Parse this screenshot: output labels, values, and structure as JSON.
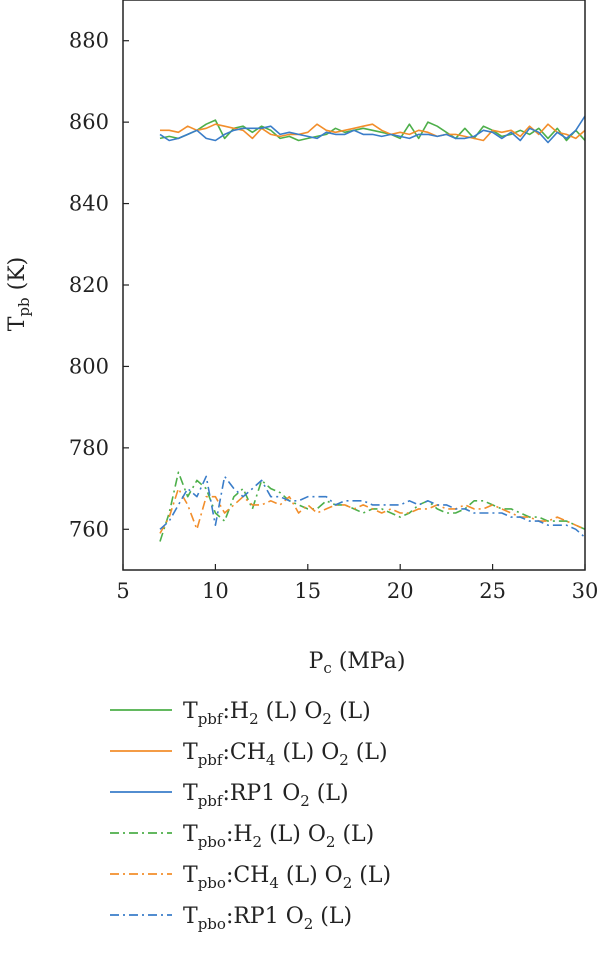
{
  "chart_data": {
    "type": "line",
    "xlabel_main": "P",
    "xlabel_sub": "c",
    "xlabel_unit": " (MPa)",
    "ylabel_main": "T",
    "ylabel_sub": "pb",
    "ylabel_unit": " (K)",
    "xlim": [
      5,
      30
    ],
    "ylim": [
      750,
      890
    ],
    "xticks": [
      "5",
      "10",
      "15",
      "20",
      "25",
      "30"
    ],
    "yticks": [
      "760",
      "780",
      "800",
      "820",
      "840",
      "860",
      "880"
    ],
    "legend_position": "below",
    "colors": {
      "green": "#4daf4a",
      "orange": "#f28e2b",
      "blue": "#3a7dc9"
    },
    "series": [
      {
        "legend": [
          "T",
          "pbf",
          ":H",
          "2",
          " (L) O",
          "2",
          " (L)"
        ],
        "color": "green",
        "style": "solid",
        "x": [
          7,
          7.5,
          8,
          8.5,
          9,
          9.5,
          10,
          10.5,
          11,
          11.5,
          12,
          12.5,
          13,
          13.5,
          14,
          14.5,
          15,
          15.5,
          16,
          16.5,
          17,
          17.5,
          18,
          18.5,
          19,
          19.5,
          20,
          20.5,
          21,
          21.5,
          22,
          22.5,
          23,
          23.5,
          24,
          24.5,
          25,
          25.5,
          26,
          26.5,
          27,
          27.5,
          28,
          28.5,
          29,
          29.5,
          30
        ],
        "y": [
          856,
          856.5,
          856,
          857,
          858,
          859.5,
          860.5,
          856,
          858.5,
          859,
          857.5,
          859,
          858,
          856,
          856.5,
          855.5,
          856,
          856.5,
          857,
          858.5,
          857.5,
          858,
          858.5,
          858,
          857.5,
          857,
          856,
          859.5,
          856,
          860,
          859,
          857.5,
          856,
          858.5,
          856,
          859,
          858,
          856.5,
          857,
          858,
          857,
          858.5,
          856,
          858.5,
          855.5,
          858,
          855.5
        ]
      },
      {
        "legend": [
          "T",
          "pbf",
          ":CH",
          "4",
          " (L) O",
          "2",
          " (L)"
        ],
        "color": "orange",
        "style": "solid",
        "x": [
          7,
          7.5,
          8,
          8.5,
          9,
          9.5,
          10,
          10.5,
          11,
          11.5,
          12,
          12.5,
          13,
          13.5,
          14,
          14.5,
          15,
          15.5,
          16,
          16.5,
          17,
          17.5,
          18,
          18.5,
          19,
          19.5,
          20,
          20.5,
          21,
          21.5,
          22,
          22.5,
          23,
          23.5,
          24,
          24.5,
          25,
          25.5,
          26,
          26.5,
          27,
          27.5,
          28,
          28.5,
          29,
          29.5,
          30
        ],
        "y": [
          858,
          858,
          857.5,
          859,
          858,
          858.5,
          859.5,
          859,
          858.5,
          858,
          856,
          858.5,
          857,
          856.5,
          857,
          857,
          857.5,
          859.5,
          858,
          857.5,
          858,
          858.5,
          859,
          859.5,
          858,
          857,
          857.5,
          857,
          858,
          857.5,
          856.5,
          857,
          857,
          856.5,
          856,
          855.5,
          858,
          857.5,
          858,
          856.5,
          859,
          857,
          859.5,
          857.5,
          857,
          856,
          858
        ]
      },
      {
        "legend": [
          "T",
          "pbf",
          ":RP1 O",
          "2",
          " (L)"
        ],
        "color": "blue",
        "style": "solid",
        "x": [
          7,
          7.5,
          8,
          8.5,
          9,
          9.5,
          10,
          10.5,
          11,
          11.5,
          12,
          12.5,
          13,
          13.5,
          14,
          14.5,
          15,
          15.5,
          16,
          16.5,
          17,
          17.5,
          18,
          18.5,
          19,
          19.5,
          20,
          20.5,
          21,
          21.5,
          22,
          22.5,
          23,
          23.5,
          24,
          24.5,
          25,
          25.5,
          26,
          26.5,
          27,
          27.5,
          28,
          28.5,
          29,
          29.5,
          30
        ],
        "y": [
          857,
          855.5,
          856,
          857,
          858,
          856,
          855.5,
          857,
          858,
          858.5,
          858.5,
          858.5,
          859,
          857,
          857.5,
          857,
          856.5,
          856,
          857.5,
          857,
          857,
          858,
          857,
          857,
          856.5,
          857,
          856.5,
          856,
          857,
          857,
          856.5,
          857,
          856,
          856,
          856.5,
          858,
          857.5,
          856,
          857.5,
          855.5,
          858.5,
          857.5,
          855,
          857.5,
          856,
          858,
          861.5
        ]
      },
      {
        "legend": [
          "T",
          "pbo",
          ":H",
          "2",
          " (L) O",
          "2",
          " (L)"
        ],
        "color": "green",
        "style": "dashdot",
        "x": [
          7,
          7.5,
          8,
          8.5,
          9,
          9.5,
          10,
          10.5,
          11,
          11.5,
          12,
          12.5,
          13,
          13.5,
          14,
          14.5,
          15,
          15.5,
          16,
          16.5,
          17,
          17.5,
          18,
          18.5,
          19,
          19.5,
          20,
          20.5,
          21,
          21.5,
          22,
          22.5,
          23,
          23.5,
          24,
          24.5,
          25,
          25.5,
          26,
          26.5,
          27,
          27.5,
          28,
          28.5,
          29,
          29.5,
          30
        ],
        "y": [
          757,
          764,
          774,
          768,
          772,
          770,
          764,
          762,
          768,
          770,
          765,
          772,
          770,
          769,
          767,
          766,
          765,
          765,
          767,
          766,
          766,
          765,
          764,
          765,
          765,
          764,
          763,
          764,
          766,
          767,
          765,
          764,
          764,
          765,
          767,
          767,
          766,
          765,
          765,
          764,
          763,
          763,
          762,
          762,
          762,
          761,
          760
        ]
      },
      {
        "legend": [
          "T",
          "pbo",
          ":CH",
          "4",
          " (L) O",
          "2",
          " (L)"
        ],
        "color": "orange",
        "style": "dashdot",
        "x": [
          7,
          7.5,
          8,
          8.5,
          9,
          9.5,
          10,
          10.5,
          11,
          11.5,
          12,
          12.5,
          13,
          13.5,
          14,
          14.5,
          15,
          15.5,
          16,
          16.5,
          17,
          17.5,
          18,
          18.5,
          19,
          19.5,
          20,
          20.5,
          21,
          21.5,
          22,
          22.5,
          23,
          23.5,
          24,
          24.5,
          25,
          25.5,
          26,
          26.5,
          27,
          27.5,
          28,
          28.5,
          29,
          29.5,
          30
        ],
        "y": [
          759,
          763,
          770,
          766,
          760,
          768,
          768,
          764,
          766,
          768,
          766,
          766,
          767,
          766,
          768,
          764,
          766,
          764,
          765,
          766,
          766,
          765,
          766,
          765,
          764,
          765,
          764,
          764,
          765,
          765,
          766,
          765,
          765,
          766,
          765,
          765,
          766,
          765,
          764,
          763,
          763,
          762,
          762,
          763,
          762,
          761,
          760
        ]
      },
      {
        "legend": [
          "T",
          "pbo",
          ":RP1 O",
          "2",
          " (L)"
        ],
        "color": "blue",
        "style": "dashdot",
        "x": [
          7,
          7.5,
          8,
          8.5,
          9,
          9.5,
          10,
          10.5,
          11,
          11.5,
          12,
          12.5,
          13,
          13.5,
          14,
          14.5,
          15,
          15.5,
          16,
          16.5,
          17,
          17.5,
          18,
          18.5,
          19,
          19.5,
          20,
          20.5,
          21,
          21.5,
          22,
          22.5,
          23,
          23.5,
          24,
          24.5,
          25,
          25.5,
          26,
          26.5,
          27,
          27.5,
          28,
          28.5,
          29,
          29.5,
          30
        ],
        "y": [
          760,
          762,
          766,
          770,
          768,
          773,
          761,
          773,
          770,
          768,
          770,
          772,
          768,
          768,
          767,
          767,
          768,
          768,
          768,
          766,
          767,
          767,
          767,
          766,
          766,
          766,
          766,
          767,
          766,
          767,
          766,
          766,
          765,
          765,
          764,
          764,
          764,
          764,
          763,
          763,
          762,
          762,
          761,
          761,
          761,
          760,
          758
        ]
      }
    ]
  }
}
